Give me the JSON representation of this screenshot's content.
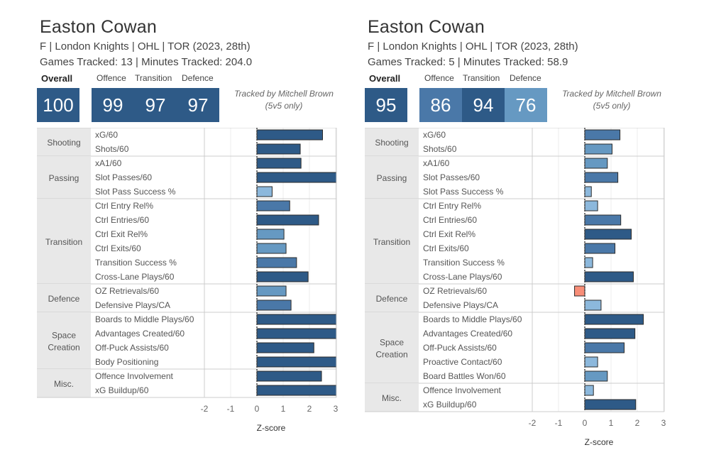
{
  "panels": [
    {
      "player_name": "Easton Cowan",
      "info_line": "F | London Knights | OHL | TOR (2023, 28th)",
      "tracking_line": "Games Tracked: 13 | Minutes Tracked: 204.0",
      "overall_label": "Overall",
      "overall_value": "100",
      "overall_color": "#2e5a87",
      "sub_scores": [
        {
          "label": "Offence",
          "value": "99",
          "color": "#2e5a87"
        },
        {
          "label": "Transition",
          "value": "97",
          "color": "#2e5a87"
        },
        {
          "label": "Defence",
          "value": "97",
          "color": "#2e5a87"
        }
      ],
      "credit_line1": "Tracked by Mitchell Brown",
      "credit_line2": "(5v5 only)"
    },
    {
      "player_name": "Easton Cowan",
      "info_line": "F | London Knights | OHL | TOR (2023, 28th)",
      "tracking_line": "Games Tracked: 5 | Minutes Tracked: 58.9",
      "overall_label": "Overall",
      "overall_value": "95",
      "overall_color": "#2e5a87",
      "sub_scores": [
        {
          "label": "Offence",
          "value": "86",
          "color": "#4a78a8"
        },
        {
          "label": "Transition",
          "value": "94",
          "color": "#2e5a87"
        },
        {
          "label": "Defence",
          "value": "76",
          "color": "#6699c2"
        }
      ],
      "credit_line1": "Tracked by Mitchell Brown",
      "credit_line2": "(5v5 only)"
    }
  ],
  "colors": {
    "dark_blue": "#2e5a87",
    "mid_blue": "#4a78a8",
    "light_blue": "#6699c2",
    "pale_blue": "#8cb8dc",
    "salmon": "#f88e78",
    "category_bg": "#e8e8e8",
    "grid": "#cccccc"
  },
  "chart_data": [
    {
      "type": "bar",
      "orientation": "horizontal",
      "xlabel": "Z-score",
      "xticks": [
        "-2",
        "-1",
        "0",
        "1",
        "2",
        "3"
      ],
      "xlim": [
        -2,
        3
      ],
      "groups": [
        {
          "name": "Shooting",
          "metrics": [
            {
              "label": "xG/60",
              "value": 2.5,
              "color": "#2e5a87"
            },
            {
              "label": "Shots/60",
              "value": 1.65,
              "color": "#2e5a87"
            }
          ]
        },
        {
          "name": "Passing",
          "metrics": [
            {
              "label": "xA1/60",
              "value": 1.68,
              "color": "#2e5a87"
            },
            {
              "label": "Slot Passes/60",
              "value": 3.2,
              "color": "#2e5a87"
            },
            {
              "label": "Slot Pass Success %",
              "value": 0.58,
              "color": "#8cb8dc"
            }
          ]
        },
        {
          "name": "Transition",
          "metrics": [
            {
              "label": "Ctrl Entry Rel%",
              "value": 1.25,
              "color": "#4a78a8"
            },
            {
              "label": "Ctrl Entries/60",
              "value": 2.35,
              "color": "#2e5a87"
            },
            {
              "label": "Ctrl Exit Rel%",
              "value": 1.03,
              "color": "#6699c2"
            },
            {
              "label": "Ctrl Exits/60",
              "value": 1.11,
              "color": "#6699c2"
            },
            {
              "label": "Transition Success %",
              "value": 1.51,
              "color": "#4a78a8"
            },
            {
              "label": "Cross-Lane Plays/60",
              "value": 1.95,
              "color": "#2e5a87"
            }
          ]
        },
        {
          "name": "Defence",
          "metrics": [
            {
              "label": "OZ Retrievals/60",
              "value": 1.11,
              "color": "#6699c2"
            },
            {
              "label": "Defensive Plays/CA",
              "value": 1.3,
              "color": "#4a78a8"
            }
          ]
        },
        {
          "name": "Space Creation",
          "metrics": [
            {
              "label": "Boards to Middle Plays/60",
              "value": 3.2,
              "color": "#2e5a87"
            },
            {
              "label": "Advantages Created/60",
              "value": 3.2,
              "color": "#2e5a87"
            },
            {
              "label": "Off-Puck Assists/60",
              "value": 2.17,
              "color": "#2e5a87"
            },
            {
              "label": "Body Positioning",
              "value": 3.2,
              "color": "#2e5a87"
            }
          ]
        },
        {
          "name": "Misc.",
          "metrics": [
            {
              "label": "Offence Involvement",
              "value": 2.46,
              "color": "#2e5a87"
            },
            {
              "label": "xG Buildup/60",
              "value": 3.2,
              "color": "#2e5a87"
            }
          ]
        }
      ]
    },
    {
      "type": "bar",
      "orientation": "horizontal",
      "xlabel": "Z-score",
      "xticks": [
        "-2",
        "-1",
        "0",
        "1",
        "2",
        "3"
      ],
      "xlim": [
        -2,
        3
      ],
      "groups": [
        {
          "name": "Shooting",
          "metrics": [
            {
              "label": "xG/60",
              "value": 1.34,
              "color": "#4a78a8"
            },
            {
              "label": "Shots/60",
              "value": 1.04,
              "color": "#6699c2"
            }
          ]
        },
        {
          "name": "Passing",
          "metrics": [
            {
              "label": "xA1/60",
              "value": 0.86,
              "color": "#6699c2"
            },
            {
              "label": "Slot Passes/60",
              "value": 1.26,
              "color": "#4a78a8"
            },
            {
              "label": "Slot Pass Success %",
              "value": 0.25,
              "color": "#8cb8dc"
            }
          ]
        },
        {
          "name": "Transition",
          "metrics": [
            {
              "label": "Ctrl Entry Rel%",
              "value": 0.49,
              "color": "#8cb8dc"
            },
            {
              "label": "Ctrl Entries/60",
              "value": 1.37,
              "color": "#4a78a8"
            },
            {
              "label": "Ctrl Exit Rel%",
              "value": 1.77,
              "color": "#2e5a87"
            },
            {
              "label": "Ctrl Exits/60",
              "value": 1.15,
              "color": "#4a78a8"
            },
            {
              "label": "Transition Success %",
              "value": 0.3,
              "color": "#8cb8dc"
            },
            {
              "label": "Cross-Lane Plays/60",
              "value": 1.85,
              "color": "#2e5a87"
            }
          ]
        },
        {
          "name": "Defence",
          "metrics": [
            {
              "label": "OZ Retrievals/60",
              "value": -0.39,
              "color": "#f88e78"
            },
            {
              "label": "Defensive Plays/CA",
              "value": 0.62,
              "color": "#8cb8dc"
            }
          ]
        },
        {
          "name": "Space Creation",
          "metrics": [
            {
              "label": "Boards to Middle Plays/60",
              "value": 2.23,
              "color": "#2e5a87"
            },
            {
              "label": "Advantages Created/60",
              "value": 1.91,
              "color": "#2e5a87"
            },
            {
              "label": "Off-Puck Assists/60",
              "value": 1.5,
              "color": "#4a78a8"
            },
            {
              "label": "Proactive Contact/60",
              "value": 0.49,
              "color": "#8cb8dc"
            },
            {
              "label": "Board Battles Won/60",
              "value": 0.86,
              "color": "#6699c2"
            }
          ]
        },
        {
          "name": "Misc.",
          "metrics": [
            {
              "label": "Offence Involvement",
              "value": 0.33,
              "color": "#8cb8dc"
            },
            {
              "label": "xG Buildup/60",
              "value": 1.94,
              "color": "#2e5a87"
            }
          ]
        }
      ]
    }
  ]
}
